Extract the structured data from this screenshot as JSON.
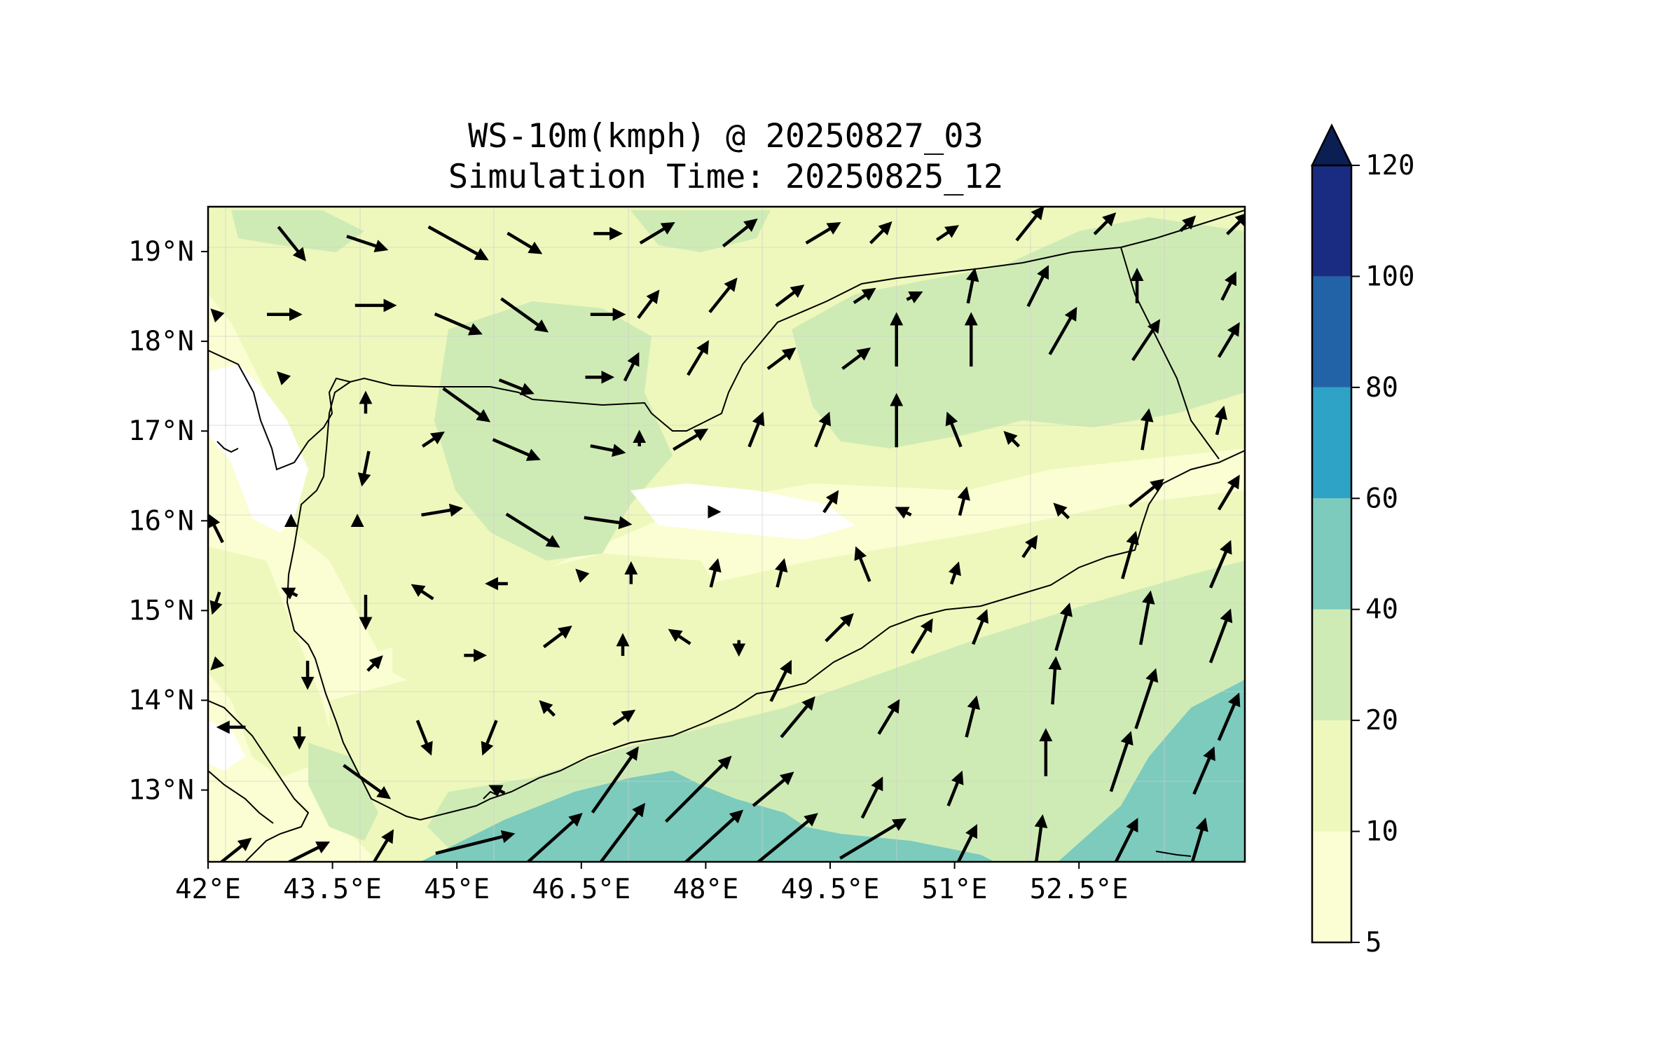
{
  "title": {
    "line1": "WS-10m(kmph) @ 20250827_03",
    "line2": "Simulation Time: 20250825_12"
  },
  "map": {
    "lon_range": [
      42,
      54.5
    ],
    "lat_range": [
      12.2,
      19.5
    ],
    "lon_tick_values": [
      42,
      43.5,
      45,
      46.5,
      48,
      49.5,
      51,
      52.5
    ],
    "lon_tick_labels": [
      "42°E",
      "43.5°E",
      "45°E",
      "46.5°E",
      "48°E",
      "49.5°E",
      "51°E",
      "52.5°E"
    ],
    "lat_tick_values": [
      13,
      14,
      15,
      16,
      17,
      18,
      19
    ],
    "lat_tick_labels": [
      "13°N",
      "14°N",
      "15°N",
      "16°N",
      "17°N",
      "18°N",
      "19°N"
    ],
    "gridlines": true
  },
  "colorbar": {
    "levels": [
      5,
      10,
      20,
      40,
      60,
      80,
      100,
      120
    ],
    "tick_labels": [
      "5",
      "10",
      "20",
      "40",
      "60",
      "80",
      "100",
      "120"
    ],
    "colors": [
      "#fbfed2",
      "#eef8bc",
      "#cfebb5",
      "#7ccbbd",
      "#2ea3c5",
      "#2263a8",
      "#1a2c82"
    ],
    "extend_color": "#0b1f55",
    "extend": "max"
  },
  "field_colors": {
    "band_10_20": "#eef8bc",
    "band_20_40": "#cfebb5",
    "band_40_60": "#7ccbbd"
  },
  "chart_data": {
    "type": "contourf-quiver",
    "variable": "WS-10m(kmph)",
    "valid_time": "20250827_03",
    "simulation_time": "20250825_12",
    "wind_vectors_u_v": [
      [
        42.3,
        12.3,
        10,
        8
      ],
      [
        43.2,
        12.3,
        12,
        6
      ],
      [
        44.1,
        12.35,
        6,
        10
      ],
      [
        45.2,
        12.4,
        24,
        6
      ],
      [
        46.1,
        12.4,
        20,
        18
      ],
      [
        46.9,
        12.4,
        18,
        24
      ],
      [
        48.0,
        12.4,
        22,
        20
      ],
      [
        48.9,
        12.4,
        22,
        18
      ],
      [
        50.0,
        12.45,
        20,
        12
      ],
      [
        51.1,
        12.3,
        8,
        16
      ],
      [
        52.0,
        12.3,
        3,
        22
      ],
      [
        53.0,
        12.3,
        10,
        20
      ],
      [
        53.9,
        12.3,
        6,
        20
      ],
      [
        42.1,
        13.0,
        0,
        0
      ],
      [
        43.9,
        13.1,
        14,
        -10
      ],
      [
        45.5,
        13.0,
        -4,
        2
      ],
      [
        46.9,
        13.1,
        14,
        20
      ],
      [
        47.9,
        13.0,
        20,
        20
      ],
      [
        48.8,
        13.0,
        12,
        10
      ],
      [
        50.0,
        12.9,
        6,
        12
      ],
      [
        51.0,
        13.0,
        4,
        10
      ],
      [
        52.1,
        13.4,
        0,
        14
      ],
      [
        53.0,
        13.3,
        6,
        18
      ],
      [
        54.0,
        13.2,
        6,
        14
      ],
      [
        42.3,
        13.7,
        -8,
        0
      ],
      [
        43.1,
        13.6,
        0,
        -6
      ],
      [
        44.6,
        13.6,
        4,
        -10
      ],
      [
        45.4,
        13.6,
        -4,
        -10
      ],
      [
        46.1,
        13.9,
        -4,
        4
      ],
      [
        47.0,
        13.8,
        6,
        4
      ],
      [
        49.1,
        13.8,
        10,
        12
      ],
      [
        50.2,
        13.8,
        6,
        10
      ],
      [
        51.2,
        13.8,
        3,
        12
      ],
      [
        52.2,
        14.2,
        1,
        14
      ],
      [
        53.3,
        14.0,
        6,
        18
      ],
      [
        54.3,
        13.8,
        6,
        14
      ],
      [
        42.1,
        14.4,
        -2,
        -2
      ],
      [
        43.2,
        14.3,
        0,
        -8
      ],
      [
        44.0,
        14.4,
        4,
        4
      ],
      [
        45.2,
        14.5,
        6,
        0
      ],
      [
        46.2,
        14.7,
        8,
        6
      ],
      [
        47.0,
        14.6,
        0,
        6
      ],
      [
        47.7,
        14.7,
        -6,
        4
      ],
      [
        48.4,
        14.6,
        0,
        -4
      ],
      [
        48.9,
        14.2,
        6,
        12
      ],
      [
        49.6,
        14.8,
        8,
        8
      ],
      [
        50.6,
        14.7,
        6,
        10
      ],
      [
        51.3,
        14.8,
        4,
        10
      ],
      [
        52.3,
        14.8,
        4,
        14
      ],
      [
        53.3,
        14.9,
        3,
        16
      ],
      [
        54.2,
        14.7,
        6,
        16
      ],
      [
        42.1,
        15.1,
        -2,
        -6
      ],
      [
        43.0,
        15.2,
        -4,
        2
      ],
      [
        43.9,
        15.0,
        0,
        -10
      ],
      [
        44.6,
        15.2,
        -6,
        4
      ],
      [
        45.5,
        15.3,
        -6,
        0
      ],
      [
        46.5,
        15.4,
        -2,
        2
      ],
      [
        47.1,
        15.4,
        0,
        6
      ],
      [
        48.1,
        15.4,
        2,
        8
      ],
      [
        48.9,
        15.4,
        2,
        8
      ],
      [
        49.9,
        15.5,
        -4,
        10
      ],
      [
        51.0,
        15.4,
        2,
        6
      ],
      [
        51.9,
        15.7,
        4,
        6
      ],
      [
        53.1,
        15.6,
        4,
        14
      ],
      [
        54.2,
        15.5,
        6,
        14
      ],
      [
        42.1,
        15.9,
        -4,
        8
      ],
      [
        43.0,
        16.0,
        0,
        2
      ],
      [
        43.8,
        16.0,
        0,
        2
      ],
      [
        44.8,
        16.1,
        12,
        2
      ],
      [
        45.9,
        15.9,
        16,
        -10
      ],
      [
        46.8,
        16.0,
        14,
        -2
      ],
      [
        48.1,
        16.1,
        2,
        0
      ],
      [
        49.5,
        16.2,
        4,
        6
      ],
      [
        50.4,
        16.1,
        -4,
        2
      ],
      [
        51.1,
        16.2,
        2,
        8
      ],
      [
        52.3,
        16.1,
        -4,
        4
      ],
      [
        53.3,
        16.3,
        10,
        8
      ],
      [
        54.3,
        16.3,
        6,
        10
      ],
      [
        42.1,
        16.9,
        0,
        0
      ],
      [
        43.9,
        16.6,
        -2,
        -10
      ],
      [
        44.7,
        16.9,
        6,
        4
      ],
      [
        45.7,
        16.8,
        14,
        -6
      ],
      [
        46.8,
        16.8,
        10,
        -2
      ],
      [
        47.2,
        16.9,
        0,
        4
      ],
      [
        47.8,
        16.9,
        10,
        6
      ],
      [
        48.6,
        17.0,
        4,
        10
      ],
      [
        49.4,
        17.0,
        4,
        10
      ],
      [
        50.3,
        17.1,
        0,
        16
      ],
      [
        51.0,
        17.0,
        -4,
        10
      ],
      [
        51.7,
        16.9,
        -4,
        4
      ],
      [
        53.3,
        17.0,
        2,
        12
      ],
      [
        54.2,
        17.1,
        2,
        8
      ],
      [
        42.9,
        17.6,
        -2,
        2
      ],
      [
        43.9,
        17.3,
        0,
        6
      ],
      [
        45.1,
        17.3,
        14,
        -10
      ],
      [
        45.7,
        17.5,
        10,
        -4
      ],
      [
        46.7,
        17.6,
        8,
        0
      ],
      [
        47.1,
        17.7,
        4,
        8
      ],
      [
        47.9,
        17.8,
        6,
        10
      ],
      [
        48.9,
        17.8,
        8,
        6
      ],
      [
        49.8,
        17.8,
        8,
        6
      ],
      [
        50.3,
        18.0,
        0,
        16
      ],
      [
        51.2,
        18.0,
        0,
        16
      ],
      [
        52.3,
        18.1,
        8,
        14
      ],
      [
        53.3,
        18.0,
        8,
        12
      ],
      [
        54.3,
        18.0,
        6,
        10
      ],
      [
        42.1,
        18.3,
        -2,
        2
      ],
      [
        42.9,
        18.3,
        10,
        0
      ],
      [
        44.0,
        18.4,
        12,
        0
      ],
      [
        45.0,
        18.2,
        14,
        -6
      ],
      [
        45.8,
        18.3,
        14,
        -10
      ],
      [
        46.8,
        18.3,
        10,
        0
      ],
      [
        47.3,
        18.4,
        6,
        8
      ],
      [
        48.2,
        18.5,
        8,
        10
      ],
      [
        49.0,
        18.5,
        8,
        6
      ],
      [
        49.9,
        18.5,
        6,
        4
      ],
      [
        50.5,
        18.5,
        4,
        2
      ],
      [
        51.2,
        18.6,
        2,
        10
      ],
      [
        52.0,
        18.6,
        6,
        12
      ],
      [
        53.2,
        18.6,
        0,
        10
      ],
      [
        54.3,
        18.6,
        4,
        8
      ],
      [
        42.1,
        19.1,
        0,
        0
      ],
      [
        43.0,
        19.1,
        8,
        -10
      ],
      [
        43.9,
        19.1,
        12,
        -4
      ],
      [
        45.0,
        19.1,
        18,
        -10
      ],
      [
        45.8,
        19.1,
        10,
        -6
      ],
      [
        46.8,
        19.2,
        8,
        0
      ],
      [
        47.4,
        19.2,
        10,
        6
      ],
      [
        48.4,
        19.2,
        10,
        8
      ],
      [
        49.4,
        19.2,
        10,
        6
      ],
      [
        50.1,
        19.2,
        6,
        6
      ],
      [
        50.9,
        19.2,
        6,
        4
      ],
      [
        51.9,
        19.3,
        8,
        10
      ],
      [
        52.8,
        19.3,
        6,
        6
      ],
      [
        53.8,
        19.3,
        4,
        4
      ],
      [
        54.4,
        19.3,
        6,
        6
      ]
    ]
  }
}
